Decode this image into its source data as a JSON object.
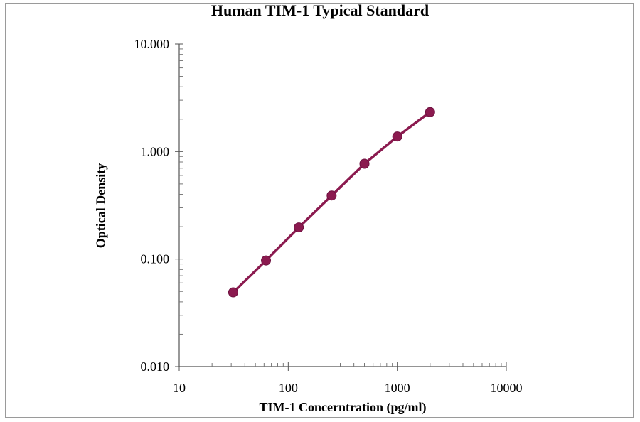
{
  "chart_data": {
    "type": "line",
    "title": "Human TIM-1 Typical Standard",
    "xlabel": "TIM-1 Concerntration (pg/ml)",
    "ylabel": "Optical Density",
    "x_scale": "log",
    "y_scale": "log",
    "xlim": [
      10,
      10000
    ],
    "ylim": [
      0.01,
      10
    ],
    "x_ticks": [
      "10",
      "100",
      "1000",
      "10000"
    ],
    "y_ticks": [
      "0.010",
      "0.100",
      "1.000",
      "10.000"
    ],
    "grid": false,
    "legend": "none",
    "series": [
      {
        "color": "#8b1a4f",
        "x": [
          31.25,
          62.5,
          125,
          250,
          500,
          1000,
          2000
        ],
        "y": [
          0.049,
          0.097,
          0.197,
          0.39,
          0.77,
          1.38,
          2.33
        ]
      }
    ]
  }
}
